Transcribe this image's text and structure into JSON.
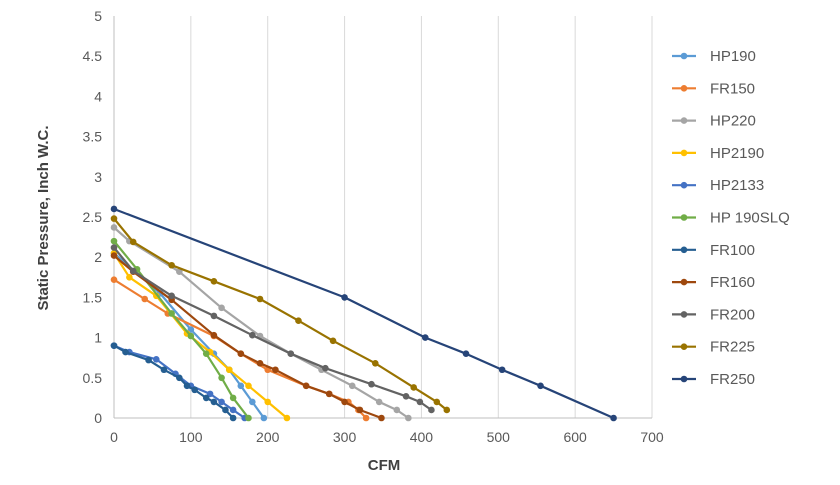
{
  "chart_data": {
    "type": "line",
    "xlabel": "CFM",
    "ylabel": "Static Pressure, Inch W.C.",
    "xlim": [
      0,
      700
    ],
    "ylim": [
      0,
      5
    ],
    "x_ticks": [
      0,
      100,
      200,
      300,
      400,
      500,
      600,
      700
    ],
    "y_ticks": [
      0,
      0.5,
      1,
      1.5,
      2,
      2.5,
      3,
      3.5,
      4,
      4.5,
      5
    ],
    "grid": "vertical",
    "legend": "right",
    "series": [
      {
        "name": "HP190",
        "color": "#5B9BD5",
        "points": [
          [
            0,
            2.05
          ],
          [
            60,
            1.55
          ],
          [
            100,
            1.1
          ],
          [
            130,
            0.8
          ],
          [
            150,
            0.6
          ],
          [
            165,
            0.4
          ],
          [
            180,
            0.2
          ],
          [
            195,
            0
          ]
        ]
      },
      {
        "name": "FR150",
        "color": "#ED7D31",
        "points": [
          [
            0,
            1.72
          ],
          [
            40,
            1.48
          ],
          [
            70,
            1.3
          ],
          [
            130,
            1.02
          ],
          [
            165,
            0.8
          ],
          [
            200,
            0.6
          ],
          [
            250,
            0.4
          ],
          [
            280,
            0.3
          ],
          [
            305,
            0.2
          ],
          [
            318,
            0.1
          ],
          [
            328,
            0
          ]
        ]
      },
      {
        "name": "HP220",
        "color": "#A5A5A5",
        "points": [
          [
            0,
            2.37
          ],
          [
            20,
            2.2
          ],
          [
            85,
            1.82
          ],
          [
            140,
            1.37
          ],
          [
            190,
            1.02
          ],
          [
            230,
            0.8
          ],
          [
            270,
            0.6
          ],
          [
            310,
            0.4
          ],
          [
            345,
            0.2
          ],
          [
            368,
            0.1
          ],
          [
            383,
            0
          ]
        ]
      },
      {
        "name": "HP2190",
        "color": "#FFC000",
        "points": [
          [
            0,
            2.05
          ],
          [
            20,
            1.75
          ],
          [
            55,
            1.52
          ],
          [
            95,
            1.05
          ],
          [
            125,
            0.82
          ],
          [
            150,
            0.6
          ],
          [
            175,
            0.4
          ],
          [
            200,
            0.2
          ],
          [
            225,
            0
          ]
        ]
      },
      {
        "name": "HP2133",
        "color": "#4472C4",
        "points": [
          [
            0,
            0.9
          ],
          [
            20,
            0.82
          ],
          [
            55,
            0.73
          ],
          [
            80,
            0.55
          ],
          [
            100,
            0.4
          ],
          [
            125,
            0.3
          ],
          [
            140,
            0.2
          ],
          [
            155,
            0.1
          ],
          [
            170,
            0
          ]
        ]
      },
      {
        "name": "HP 190SLQ",
        "color": "#70AD47",
        "points": [
          [
            0,
            2.2
          ],
          [
            30,
            1.85
          ],
          [
            75,
            1.3
          ],
          [
            100,
            1.02
          ],
          [
            120,
            0.8
          ],
          [
            140,
            0.5
          ],
          [
            155,
            0.25
          ],
          [
            175,
            0
          ]
        ]
      },
      {
        "name": "FR100",
        "color": "#255E91",
        "points": [
          [
            0,
            0.9
          ],
          [
            15,
            0.82
          ],
          [
            45,
            0.72
          ],
          [
            65,
            0.6
          ],
          [
            85,
            0.5
          ],
          [
            95,
            0.4
          ],
          [
            105,
            0.35
          ],
          [
            120,
            0.25
          ],
          [
            130,
            0.2
          ],
          [
            145,
            0.1
          ],
          [
            155,
            0
          ]
        ]
      },
      {
        "name": "FR160",
        "color": "#9E480E",
        "points": [
          [
            0,
            2.02
          ],
          [
            25,
            1.82
          ],
          [
            75,
            1.47
          ],
          [
            130,
            1.03
          ],
          [
            165,
            0.8
          ],
          [
            190,
            0.68
          ],
          [
            210,
            0.6
          ],
          [
            250,
            0.4
          ],
          [
            280,
            0.3
          ],
          [
            300,
            0.2
          ],
          [
            320,
            0.1
          ],
          [
            348,
            0
          ]
        ]
      },
      {
        "name": "FR200",
        "color": "#636363",
        "points": [
          [
            0,
            2.12
          ],
          [
            25,
            1.83
          ],
          [
            75,
            1.52
          ],
          [
            130,
            1.27
          ],
          [
            180,
            1.03
          ],
          [
            230,
            0.8
          ],
          [
            275,
            0.62
          ],
          [
            335,
            0.42
          ],
          [
            380,
            0.27
          ],
          [
            398,
            0.2
          ],
          [
            413,
            0.1
          ]
        ]
      },
      {
        "name": "FR225",
        "color": "#997300",
        "points": [
          [
            0,
            2.48
          ],
          [
            25,
            2.19
          ],
          [
            75,
            1.9
          ],
          [
            130,
            1.7
          ],
          [
            190,
            1.48
          ],
          [
            240,
            1.21
          ],
          [
            285,
            0.96
          ],
          [
            340,
            0.68
          ],
          [
            390,
            0.38
          ],
          [
            420,
            0.2
          ],
          [
            433,
            0.1
          ]
        ]
      },
      {
        "name": "FR250",
        "color": "#264478",
        "points": [
          [
            0,
            2.6
          ],
          [
            300,
            1.5
          ],
          [
            405,
            1.0
          ],
          [
            458,
            0.8
          ],
          [
            505,
            0.6
          ],
          [
            555,
            0.4
          ],
          [
            650,
            0
          ]
        ]
      }
    ]
  }
}
